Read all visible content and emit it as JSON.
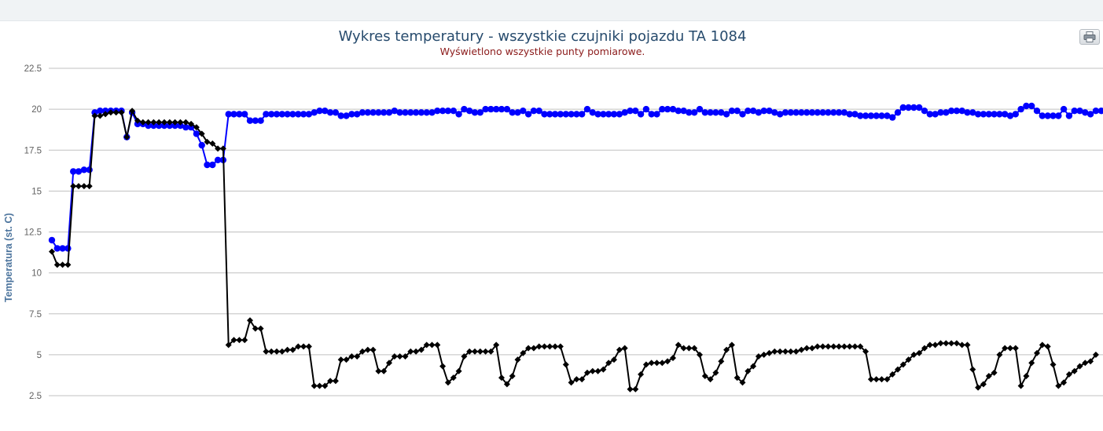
{
  "toolbar": {
    "print_icon": "printer-icon"
  },
  "chart_data": {
    "type": "line",
    "title": "Wykres temperatury - wszystkie czujniki pojazdu TA 1084",
    "subtitle": "Wyświetlono wszystkie punty pomiarowe.",
    "xlabel": "",
    "ylabel": "Temperatura (st. C)",
    "ylim": [
      2.5,
      22.5
    ],
    "yticks": [
      "2.5",
      "5",
      "7.5",
      "10",
      "12.5",
      "15",
      "17.5",
      "20",
      "22.5"
    ],
    "grid": true,
    "legend": "none",
    "series": [
      {
        "color": "#0000ff",
        "marker": "circle",
        "values": [
          12.0,
          11.5,
          11.5,
          11.5,
          16.2,
          16.2,
          16.3,
          16.3,
          19.8,
          19.9,
          19.9,
          19.9,
          19.9,
          19.9,
          18.3,
          19.8,
          19.1,
          19.1,
          19.0,
          19.0,
          19.0,
          19.0,
          19.0,
          19.0,
          19.0,
          18.9,
          18.9,
          18.5,
          17.8,
          16.6,
          16.6,
          16.9,
          16.9,
          19.7,
          19.7,
          19.7,
          19.7,
          19.3,
          19.3,
          19.3,
          19.7,
          19.7,
          19.7,
          19.7,
          19.7,
          19.7,
          19.7,
          19.7,
          19.7,
          19.8,
          19.9,
          19.9,
          19.8,
          19.8,
          19.6,
          19.6,
          19.7,
          19.7,
          19.8,
          19.8,
          19.8,
          19.8,
          19.8,
          19.8,
          19.9,
          19.8,
          19.8,
          19.8,
          19.8,
          19.8,
          19.8,
          19.8,
          19.9,
          19.9,
          19.9,
          19.9,
          19.7,
          20.0,
          19.9,
          19.8,
          19.8,
          20.0,
          20.0,
          20.0,
          20.0,
          20.0,
          19.8,
          19.8,
          19.9,
          19.7,
          19.9,
          19.9,
          19.7,
          19.7,
          19.7,
          19.7,
          19.7,
          19.7,
          19.7,
          19.7,
          20.0,
          19.8,
          19.7,
          19.7,
          19.7,
          19.7,
          19.7,
          19.8,
          19.9,
          19.9,
          19.7,
          20.0,
          19.7,
          19.7,
          20.0,
          20.0,
          20.0,
          19.9,
          19.9,
          19.8,
          19.8,
          20.0,
          19.8,
          19.8,
          19.8,
          19.8,
          19.7,
          19.9,
          19.9,
          19.7,
          19.9,
          19.9,
          19.8,
          19.9,
          19.9,
          19.8,
          19.7,
          19.8,
          19.8,
          19.8,
          19.8,
          19.8,
          19.8,
          19.8,
          19.8,
          19.8,
          19.8,
          19.8,
          19.8,
          19.7,
          19.7,
          19.6,
          19.6,
          19.6,
          19.6,
          19.6,
          19.6,
          19.5,
          19.8,
          20.1,
          20.1,
          20.1,
          20.1,
          19.9,
          19.7,
          19.7,
          19.8,
          19.8,
          19.9,
          19.9,
          19.9,
          19.8,
          19.8,
          19.7,
          19.7,
          19.7,
          19.7,
          19.7,
          19.7,
          19.6,
          19.7,
          20.0,
          20.2,
          20.2,
          19.9,
          19.6,
          19.6,
          19.6,
          19.6,
          20.0,
          19.6,
          19.9,
          19.9,
          19.8,
          19.7,
          19.9,
          19.9,
          19.7,
          19.7,
          19.7,
          19.7,
          19.8,
          19.9
        ]
      },
      {
        "color": "#000000",
        "marker": "diamond",
        "values": [
          11.3,
          10.5,
          10.5,
          10.5,
          15.3,
          15.3,
          15.3,
          15.3,
          19.6,
          19.6,
          19.7,
          19.8,
          19.8,
          19.8,
          18.3,
          19.9,
          19.3,
          19.2,
          19.2,
          19.2,
          19.2,
          19.2,
          19.2,
          19.2,
          19.2,
          19.2,
          19.1,
          18.9,
          18.5,
          18.0,
          17.9,
          17.6,
          17.6,
          5.6,
          5.9,
          5.9,
          5.9,
          7.1,
          6.6,
          6.6,
          5.2,
          5.2,
          5.2,
          5.2,
          5.3,
          5.3,
          5.5,
          5.5,
          5.5,
          3.1,
          3.1,
          3.1,
          3.4,
          3.4,
          4.7,
          4.7,
          4.9,
          4.9,
          5.2,
          5.3,
          5.3,
          4.0,
          4.0,
          4.5,
          4.9,
          4.9,
          4.9,
          5.2,
          5.2,
          5.3,
          5.6,
          5.6,
          5.6,
          4.3,
          3.3,
          3.6,
          4.0,
          4.9,
          5.2,
          5.2,
          5.2,
          5.2,
          5.2,
          5.6,
          3.6,
          3.2,
          3.7,
          4.7,
          5.1,
          5.4,
          5.4,
          5.5,
          5.5,
          5.5,
          5.5,
          5.5,
          4.4,
          3.3,
          3.5,
          3.5,
          3.9,
          4.0,
          4.0,
          4.1,
          4.5,
          4.7,
          5.3,
          5.4,
          2.9,
          2.9,
          3.8,
          4.4,
          4.5,
          4.5,
          4.5,
          4.6,
          4.8,
          5.6,
          5.4,
          5.4,
          5.4,
          5.0,
          3.7,
          3.5,
          3.9,
          4.6,
          5.3,
          5.6,
          3.6,
          3.3,
          4.0,
          4.3,
          4.9,
          5.0,
          5.1,
          5.2,
          5.2,
          5.2,
          5.2,
          5.2,
          5.3,
          5.4,
          5.4,
          5.5,
          5.5,
          5.5,
          5.5,
          5.5,
          5.5,
          5.5,
          5.5,
          5.5,
          5.2,
          3.5,
          3.5,
          3.5,
          3.5,
          3.8,
          4.1,
          4.4,
          4.7,
          5.0,
          5.1,
          5.4,
          5.6,
          5.6,
          5.7,
          5.7,
          5.7,
          5.7,
          5.6,
          5.6,
          4.1,
          3.0,
          3.2,
          3.7,
          3.9,
          5.0,
          5.4,
          5.4,
          5.4,
          3.1,
          3.7,
          4.5,
          5.1,
          5.6,
          5.5,
          4.4,
          3.1,
          3.3,
          3.8,
          4.0,
          4.3,
          4.5,
          4.6,
          5.0
        ]
      }
    ]
  }
}
